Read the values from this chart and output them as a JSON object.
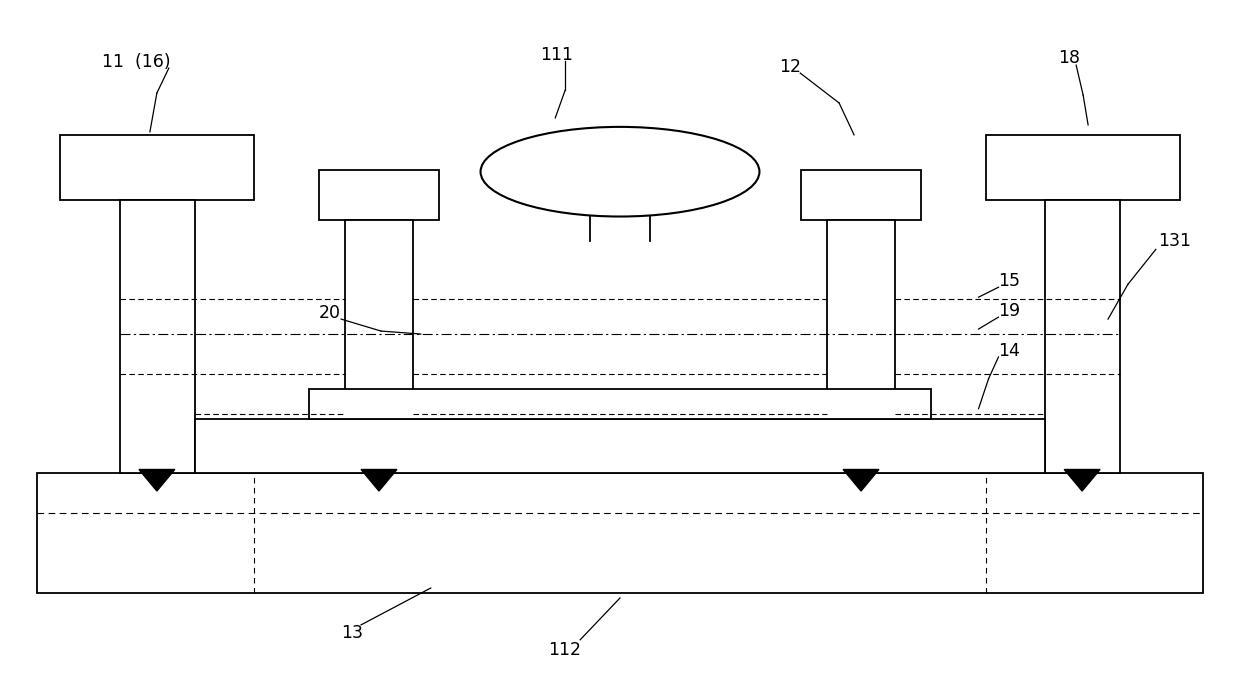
{
  "bg_color": "#ffffff",
  "line_color": "#000000",
  "fig_width": 12.4,
  "fig_height": 6.89,
  "labels": {
    "11_16": "11  (16)",
    "111": "111",
    "12": "12",
    "18": "18",
    "20": "20",
    "15": "15",
    "19": "19",
    "14": "14",
    "131": "131",
    "13": "13",
    "112": "112"
  }
}
